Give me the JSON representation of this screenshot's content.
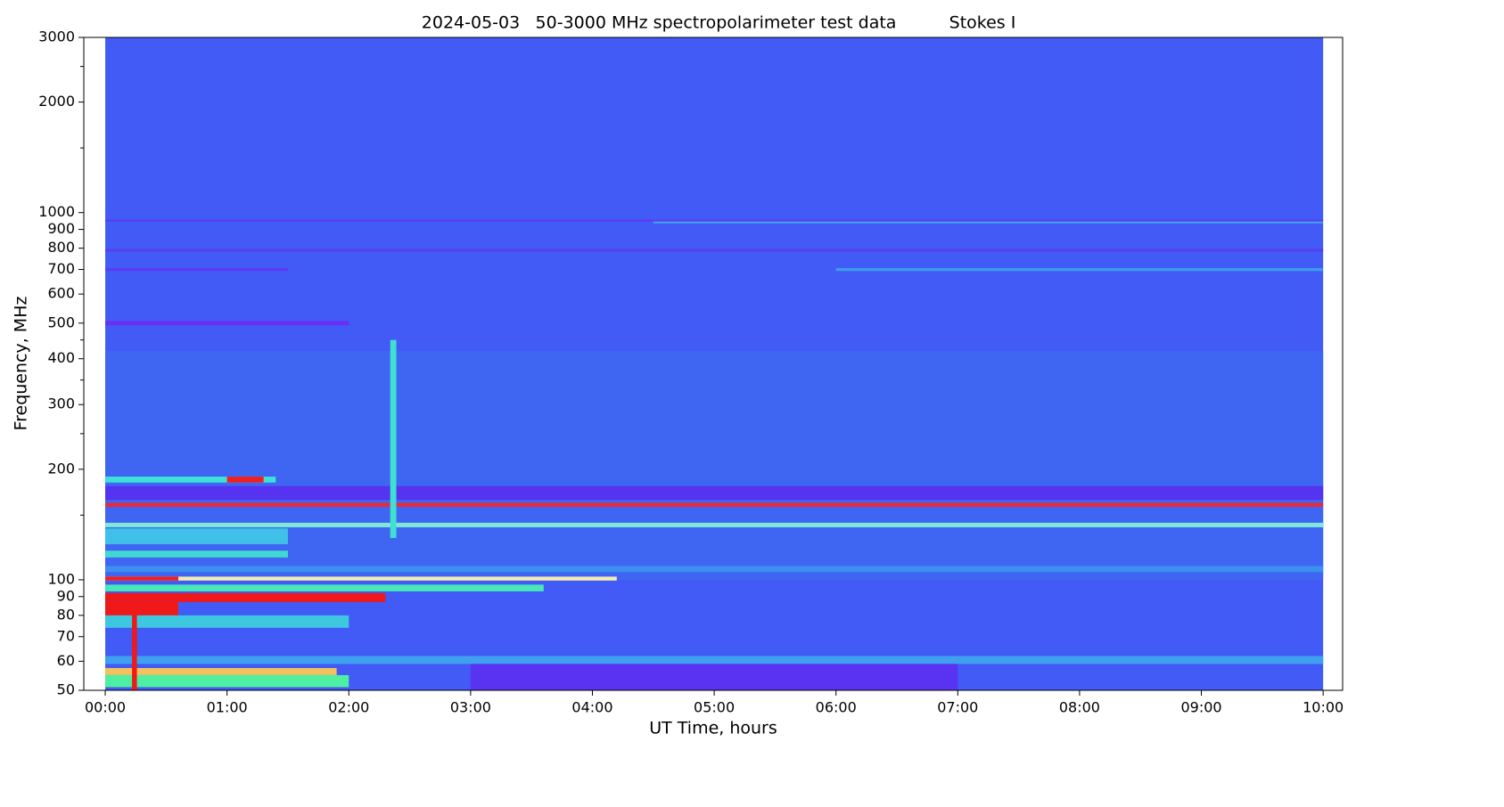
{
  "chart_data": {
    "type": "heatmap",
    "title": [
      "2024-05-03",
      "50-3000 MHz spectropolarimeter test data",
      "Stokes I"
    ],
    "x_label": "UT Time, hours",
    "y_label": "Frequency, MHz",
    "xlim": [
      -0.176,
      10.16
    ],
    "ylim": [
      50,
      3000
    ],
    "y_log": true,
    "grid": false,
    "xticks": [
      {
        "value": 0,
        "label": "00:00"
      },
      {
        "value": 1,
        "label": "01:00"
      },
      {
        "value": 2,
        "label": "02:00"
      },
      {
        "value": 3,
        "label": "03:00"
      },
      {
        "value": 4,
        "label": "04:00"
      },
      {
        "value": 5,
        "label": "05:00"
      },
      {
        "value": 6,
        "label": "06:00"
      },
      {
        "value": 7,
        "label": "07:00"
      },
      {
        "value": 8,
        "label": "08:00"
      },
      {
        "value": 9,
        "label": "09:00"
      },
      {
        "value": 10,
        "label": "10:00"
      }
    ],
    "yticks": [
      50,
      60,
      70,
      80,
      90,
      100,
      200,
      300,
      400,
      500,
      600,
      700,
      800,
      900,
      1000,
      2000,
      3000
    ],
    "yminor_ticks": [
      150,
      250,
      350,
      450,
      1500,
      2500
    ],
    "background": {
      "x": [
        0,
        10
      ],
      "y": [
        50,
        3000
      ],
      "color": "#425af6"
    },
    "bands": [
      {
        "x": [
          0,
          10
        ],
        "y": [
          100,
          420
        ],
        "color": "#3f66f2"
      },
      {
        "x": [
          0,
          10
        ],
        "y": [
          945,
          958
        ],
        "color": "#5a3ef2"
      },
      {
        "x": [
          4.5,
          10
        ],
        "y": [
          935,
          945
        ],
        "color": "#3ea8ee"
      },
      {
        "x": [
          0,
          10
        ],
        "y": [
          783,
          796
        ],
        "color": "#5a3ff0"
      },
      {
        "x": [
          0,
          1.5
        ],
        "y": [
          693,
          706
        ],
        "color": "#5b3cf4"
      },
      {
        "x": [
          6,
          10
        ],
        "y": [
          693,
          706
        ],
        "color": "#3e9cee"
      },
      {
        "x": [
          0,
          2
        ],
        "y": [
          493,
          507
        ],
        "color": "#6a2ef4"
      },
      {
        "x": [
          0,
          10
        ],
        "y": [
          165,
          180
        ],
        "color": "#5533f0"
      },
      {
        "x": [
          0,
          1.4
        ],
        "y": [
          184,
          191
        ],
        "color": "#3ee0d8"
      },
      {
        "x": [
          1,
          1.3
        ],
        "y": [
          184,
          191
        ],
        "color": "#f02020"
      },
      {
        "x": [
          0,
          10
        ],
        "y": [
          158,
          162
        ],
        "color": "#e82a3a"
      },
      {
        "x": [
          0,
          10
        ],
        "y": [
          139,
          143
        ],
        "color": "#7de8d8"
      },
      {
        "x": [
          0,
          1.5
        ],
        "y": [
          125,
          138
        ],
        "color": "#3ec0e8"
      },
      {
        "x": [
          0,
          1.5
        ],
        "y": [
          115,
          120
        ],
        "color": "#40d8d0"
      },
      {
        "x": [
          0,
          10
        ],
        "y": [
          105,
          109
        ],
        "color": "#3c90f0"
      },
      {
        "x": [
          0,
          4.2
        ],
        "y": [
          99.5,
          102
        ],
        "color": "#f5ecb0"
      },
      {
        "x": [
          0,
          0.6
        ],
        "y": [
          99.5,
          102
        ],
        "color": "#f02020"
      },
      {
        "x": [
          0,
          3.6
        ],
        "y": [
          93,
          97
        ],
        "color": "#48e8b8"
      },
      {
        "x": [
          0,
          2.3
        ],
        "y": [
          87,
          92
        ],
        "color": "#f01818"
      },
      {
        "x": [
          0,
          0.6
        ],
        "y": [
          80,
          87
        ],
        "color": "#f01818"
      },
      {
        "x": [
          0,
          2
        ],
        "y": [
          74,
          80
        ],
        "color": "#3ec8e0"
      },
      {
        "x": [
          0,
          10
        ],
        "y": [
          59,
          62
        ],
        "color": "#3ea0ef"
      },
      {
        "x": [
          3,
          7
        ],
        "y": [
          50,
          59
        ],
        "color": "#5a32f2"
      },
      {
        "x": [
          0,
          1.9
        ],
        "y": [
          55,
          57.5
        ],
        "color": "#f5c060"
      },
      {
        "x": [
          0,
          2
        ],
        "y": [
          51,
          55
        ],
        "color": "#4cf0a0"
      },
      {
        "x": [
          2.34,
          2.39
        ],
        "y": [
          130,
          450
        ],
        "color": "#40e0d0"
      },
      {
        "x": [
          0.22,
          0.26
        ],
        "y": [
          50,
          90
        ],
        "color": "#f01818"
      }
    ]
  }
}
